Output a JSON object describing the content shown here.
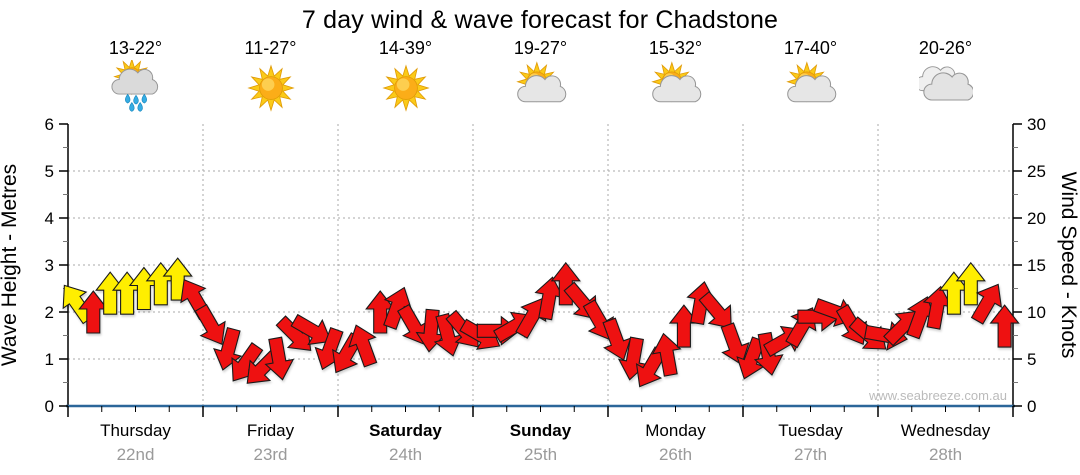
{
  "title": "7 day wind & wave forecast for Chadstone",
  "watermark": "www.seabreeze.com.au",
  "days": [
    {
      "name": "Thursday",
      "date": "22nd",
      "temp": "13-22°",
      "icon": "sun-cloud-rain",
      "bold": false
    },
    {
      "name": "Friday",
      "date": "23rd",
      "temp": "11-27°",
      "icon": "sunny",
      "bold": false
    },
    {
      "name": "Saturday",
      "date": "24th",
      "temp": "14-39°",
      "icon": "sunny",
      "bold": true
    },
    {
      "name": "Sunday",
      "date": "25th",
      "temp": "19-27°",
      "icon": "sun-cloud",
      "bold": true
    },
    {
      "name": "Monday",
      "date": "26th",
      "temp": "15-32°",
      "icon": "sun-cloud",
      "bold": false
    },
    {
      "name": "Tuesday",
      "date": "27th",
      "temp": "17-40°",
      "icon": "sun-cloud",
      "bold": false
    },
    {
      "name": "Wednesday",
      "date": "28th",
      "temp": "20-26°",
      "icon": "cloudy",
      "bold": false
    }
  ],
  "chart_data": {
    "type": "wind-arrow-series",
    "left_axis": {
      "label": "Wave Height - Metres",
      "min": 0,
      "max": 6,
      "ticks": [
        0,
        1,
        2,
        3,
        4,
        5,
        6
      ]
    },
    "right_axis": {
      "label": "Wind Speed - Knots",
      "min": 0,
      "max": 30,
      "ticks": [
        0,
        5,
        10,
        15,
        20,
        25,
        30
      ]
    },
    "grid": {
      "horizontal_at_metres": [
        1,
        2,
        3,
        4,
        5
      ],
      "vertical_at_day_boundaries": true,
      "style": "dotted"
    },
    "colors": {
      "arrow_red": "#EE1111",
      "arrow_yellow": "#FFEE00",
      "outline": "#1a1a1a",
      "grid": "#aaaaaa",
      "x_axis": "#2b6699",
      "date_text": "#9a9a9a",
      "watermark": "#bbbbbb"
    },
    "points_per_day": 8,
    "points_format": [
      "wind_speed_knots",
      "direction_deg_0_is_up",
      "color_code_y_or_r"
    ],
    "points": [
      [
        11,
        -35,
        "y"
      ],
      [
        10,
        0,
        "r"
      ],
      [
        12,
        0,
        "y"
      ],
      [
        12,
        0,
        "y"
      ],
      [
        12.5,
        0,
        "y"
      ],
      [
        13,
        0,
        "y"
      ],
      [
        13.5,
        0,
        "y"
      ],
      [
        11.5,
        -30,
        "r"
      ],
      [
        8.5,
        150,
        "r"
      ],
      [
        6,
        195,
        "r"
      ],
      [
        4.5,
        215,
        "r"
      ],
      [
        4,
        225,
        "r"
      ],
      [
        5,
        170,
        "r"
      ],
      [
        7.5,
        135,
        "r"
      ],
      [
        8,
        120,
        "r"
      ],
      [
        6,
        200,
        "r"
      ],
      [
        5.5,
        210,
        "r"
      ],
      [
        6.5,
        -20,
        "r"
      ],
      [
        10,
        0,
        "r"
      ],
      [
        10.5,
        20,
        "r"
      ],
      [
        8.5,
        150,
        "r"
      ],
      [
        8,
        185,
        "r"
      ],
      [
        7.5,
        165,
        "r"
      ],
      [
        8,
        140,
        "r"
      ],
      [
        7.5,
        120,
        "r"
      ],
      [
        8,
        90,
        "r"
      ],
      [
        8.5,
        60,
        "r"
      ],
      [
        9.5,
        30,
        "r"
      ],
      [
        11.5,
        10,
        "r"
      ],
      [
        13,
        0,
        "r"
      ],
      [
        11,
        140,
        "r"
      ],
      [
        9,
        150,
        "r"
      ],
      [
        7,
        160,
        "r"
      ],
      [
        5,
        190,
        "r"
      ],
      [
        4,
        210,
        "r"
      ],
      [
        5.5,
        -10,
        "r"
      ],
      [
        8.5,
        0,
        "r"
      ],
      [
        11,
        10,
        "r"
      ],
      [
        10,
        140,
        "r"
      ],
      [
        6.5,
        160,
        "r"
      ],
      [
        5,
        200,
        "r"
      ],
      [
        5.5,
        170,
        "r"
      ],
      [
        7,
        60,
        "r"
      ],
      [
        8.5,
        30,
        "r"
      ],
      [
        9.5,
        90,
        "r"
      ],
      [
        10,
        110,
        "r"
      ],
      [
        8.5,
        150,
        "r"
      ],
      [
        7.5,
        130,
        "r"
      ],
      [
        7.5,
        100,
        "r"
      ],
      [
        8.5,
        45,
        "r"
      ],
      [
        9.5,
        20,
        "r"
      ],
      [
        10.5,
        10,
        "r"
      ],
      [
        12,
        0,
        "y"
      ],
      [
        13,
        0,
        "y"
      ],
      [
        11,
        30,
        "r"
      ],
      [
        8.5,
        0,
        "r"
      ]
    ]
  }
}
